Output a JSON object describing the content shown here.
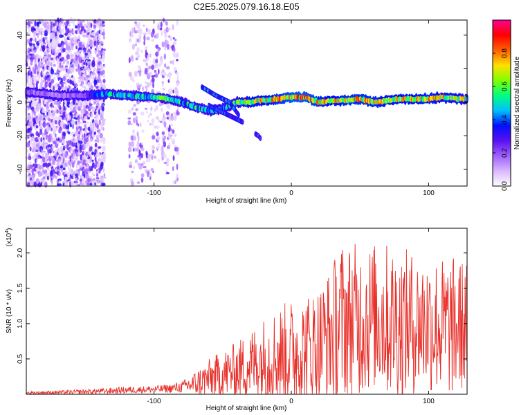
{
  "figure_title": "C2E5.2025.079.16.18.E05",
  "chart_data": [
    {
      "type": "heatmap",
      "title": "",
      "xlabel": "Height of straight line (km)",
      "ylabel": "Frequency (Hz)",
      "xlim": [
        -193,
        128
      ],
      "ylim": [
        -50,
        49
      ],
      "xticks": [
        -100,
        0,
        100
      ],
      "yticks": [
        -40,
        -20,
        0,
        20,
        40
      ],
      "colorbar": {
        "label": "Normalized spectral amplitude",
        "range": [
          0,
          1
        ],
        "ticks": [
          "0.0",
          "0.2",
          "0.4",
          "0.6",
          "0.8"
        ],
        "tick_values": [
          0,
          0.2,
          0.4,
          0.6,
          0.8
        ],
        "colors": [
          "#ffffff",
          "#d9b8ff",
          "#a060ff",
          "#5a10f0",
          "#0010ff",
          "#00c0ff",
          "#00ff80",
          "#80ff00",
          "#ffe000",
          "#ff6000",
          "#ff0000",
          "#ff0090"
        ]
      },
      "ridge": {
        "x": [
          -190,
          -170,
          -150,
          -135,
          -120,
          -100,
          -90,
          -80,
          -70,
          -60,
          -50,
          -45,
          -40,
          -35,
          -30,
          -25,
          -20,
          -10,
          0,
          10,
          20,
          30,
          40,
          50,
          60,
          70,
          80,
          90,
          100,
          110,
          120,
          128
        ],
        "freq": [
          6,
          4,
          4,
          5,
          4,
          3,
          2,
          0,
          -3,
          -5,
          -4,
          -2,
          0,
          0,
          0,
          1,
          1,
          2,
          3,
          3,
          0,
          1,
          1,
          2,
          0,
          1,
          2,
          2,
          2,
          3,
          2,
          2
        ],
        "amplitude": [
          0.25,
          0.2,
          0.3,
          0.55,
          0.6,
          0.6,
          0.7,
          0.65,
          0.6,
          0.55,
          0.55,
          0.6,
          0.75,
          0.8,
          0.85,
          0.85,
          0.85,
          0.9,
          0.95,
          0.95,
          0.9,
          0.85,
          0.9,
          0.9,
          0.9,
          0.85,
          0.85,
          0.85,
          0.9,
          0.85,
          0.8,
          0.8
        ]
      },
      "branches": [
        {
          "x": [
            -65,
            -55,
            -45,
            -38
          ],
          "freq": [
            9,
            4,
            0,
            -8
          ],
          "amplitude": 0.5
        },
        {
          "x": [
            -60,
            -50,
            -40,
            -35
          ],
          "freq": [
            -2,
            -6,
            -10,
            -12
          ],
          "amplitude": 0.4
        },
        {
          "x": [
            -26,
            -24,
            -22
          ],
          "freq": [
            -19,
            -20,
            -22
          ],
          "amplitude": 0.3
        }
      ],
      "noise_regions": [
        {
          "x": [
            -193,
            -135
          ],
          "freq": [
            -50,
            49
          ],
          "density": 1.0
        },
        {
          "x": [
            -118,
            -82
          ],
          "freq": [
            -50,
            49
          ],
          "density": 0.35
        }
      ]
    },
    {
      "type": "line",
      "title": "",
      "xlabel": "Height of straight line (km)",
      "ylabel": "SNR (10 * v/v)",
      "y_scale_label": "(x10",
      "y_scale_exp": "4",
      "y_scale_close": ")",
      "xlim": [
        -193,
        128
      ],
      "ylim": [
        0,
        2.35
      ],
      "xticks": [
        -100,
        0,
        100
      ],
      "yticks": [
        0.5,
        1.0,
        1.5,
        2.0
      ],
      "ytick_labels": [
        "0.5",
        "1.0",
        "1.5",
        "2.0"
      ],
      "color": "#e8302a",
      "envelope": {
        "x": [
          -193,
          -160,
          -140,
          -120,
          -100,
          -90,
          -80,
          -70,
          -60,
          -50,
          -40,
          -30,
          -20,
          -10,
          0,
          10,
          20,
          30,
          35,
          40,
          50,
          60,
          70,
          80,
          90,
          100,
          110,
          120,
          128
        ],
        "mean": [
          0.02,
          0.03,
          0.04,
          0.06,
          0.07,
          0.08,
          0.1,
          0.15,
          0.22,
          0.28,
          0.34,
          0.42,
          0.5,
          0.55,
          0.6,
          0.62,
          0.7,
          0.85,
          1.0,
          1.05,
          1.05,
          1.1,
          1.05,
          1.0,
          1.0,
          1.0,
          0.95,
          0.95,
          1.0
        ],
        "amp": [
          0.02,
          0.03,
          0.04,
          0.05,
          0.05,
          0.06,
          0.08,
          0.18,
          0.28,
          0.35,
          0.4,
          0.5,
          0.6,
          0.7,
          0.75,
          0.8,
          0.85,
          1.0,
          1.2,
          1.1,
          1.1,
          1.05,
          1.1,
          1.1,
          1.0,
          1.0,
          1.0,
          1.0,
          0.9
        ]
      }
    }
  ]
}
